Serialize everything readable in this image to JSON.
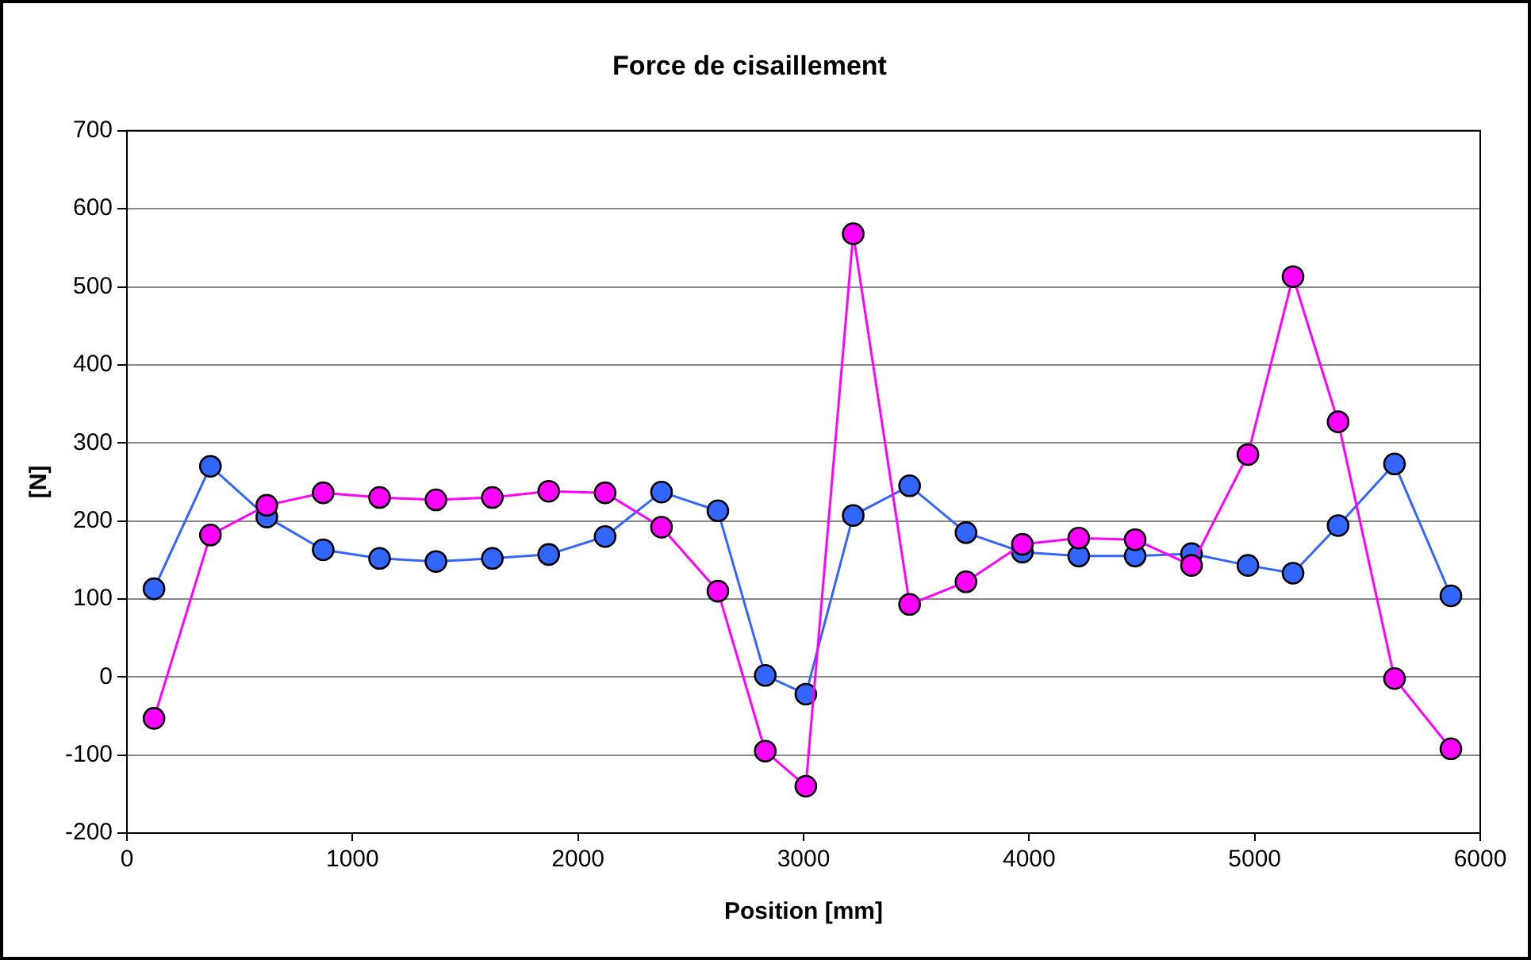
{
  "chart_data": {
    "type": "line",
    "title": "Force de cisaillement",
    "xlabel": "Position [mm]",
    "ylabel": "[N]",
    "x": [
      120,
      370,
      620,
      870,
      1120,
      1370,
      1620,
      1870,
      2120,
      2370,
      2620,
      2830,
      3010,
      3220,
      3470,
      3720,
      3970,
      4220,
      4470,
      4720,
      4970,
      5170,
      5370,
      5620,
      5870
    ],
    "series": [
      {
        "color": "#3366ff",
        "values": [
          113,
          270,
          205,
          163,
          152,
          148,
          152,
          157,
          180,
          237,
          213,
          2,
          -22,
          207,
          245,
          185,
          160,
          155,
          155,
          158,
          143,
          133,
          194,
          273,
          104
        ]
      },
      {
        "color": "#ff00ff",
        "values": [
          -53,
          182,
          220,
          236,
          230,
          227,
          230,
          238,
          236,
          192,
          110,
          -95,
          -140,
          568,
          93,
          122,
          170,
          178,
          176,
          143,
          285,
          513,
          327,
          -2,
          -92
        ]
      }
    ],
    "xlim": [
      0,
      6000
    ],
    "xticks": [
      0,
      1000,
      2000,
      3000,
      4000,
      5000,
      6000
    ],
    "ylim": [
      -200,
      700
    ],
    "yticks": [
      -200,
      -100,
      0,
      100,
      200,
      300,
      400,
      500,
      600,
      700
    ],
    "grid": "y",
    "legend": false,
    "marker": "circle",
    "line_style": "solid"
  }
}
